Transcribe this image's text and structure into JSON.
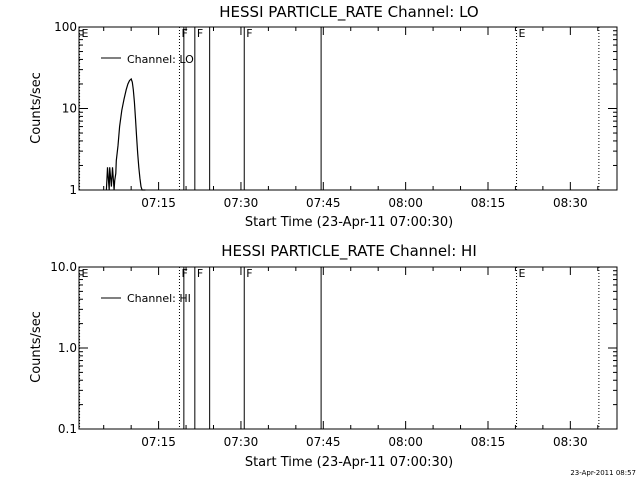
{
  "chart_data": [
    {
      "type": "line",
      "title": "HESSI PARTICLE_RATE Channel: LO",
      "xlabel": "Start Time (23-Apr-11 07:00:30)",
      "ylabel": "Counts/sec",
      "x_unit": "minutes after 07:00",
      "xlim": [
        0.5,
        98.5
      ],
      "ylim": [
        1,
        100
      ],
      "yscale": "log",
      "x_ticks": [
        {
          "label": "07:15",
          "value": 15
        },
        {
          "label": "07:30",
          "value": 30
        },
        {
          "label": "07:45",
          "value": 45
        },
        {
          "label": "08:00",
          "value": 60
        },
        {
          "label": "08:15",
          "value": 75
        },
        {
          "label": "08:30",
          "value": 90
        }
      ],
      "y_ticks": [
        {
          "label": "1",
          "value": 1
        },
        {
          "label": "10",
          "value": 10
        },
        {
          "label": "100",
          "value": 100
        }
      ],
      "legend": {
        "label": "Channel: LO",
        "placement": "top-left"
      },
      "series": [
        {
          "name": "Channel: LO",
          "x": [
            5.5,
            5.7,
            6.0,
            6.1,
            6.4,
            6.6,
            6.9,
            7.0,
            7.2,
            7.3,
            7.6,
            7.9,
            8.3,
            8.7,
            9.1,
            9.4,
            9.7,
            10.0,
            10.2,
            10.4,
            10.6,
            10.8,
            11.0,
            11.2,
            11.4,
            11.6,
            11.8,
            12.0,
            12.2,
            12.4,
            12.6
          ],
          "y": [
            1,
            1.9,
            1,
            1.9,
            1.1,
            1.9,
            1,
            1.3,
            1.6,
            2.3,
            3.5,
            6,
            9.5,
            13,
            17,
            20,
            22,
            23,
            21,
            17,
            12,
            7.5,
            4.5,
            2.8,
            1.9,
            1.4,
            1.1,
            1,
            1,
            1,
            1
          ]
        }
      ],
      "markers": [
        {
          "label": "E",
          "x": 0.6,
          "style": "dotted"
        },
        {
          "label": "F",
          "x": 18.8,
          "style": "dotted"
        },
        {
          "label": "",
          "x": 19.6,
          "style": "solid"
        },
        {
          "label": "F",
          "x": 21.6,
          "style": "solid"
        },
        {
          "label": "",
          "x": 24.3,
          "style": "solid"
        },
        {
          "label": "F",
          "x": 30.6,
          "style": "solid"
        },
        {
          "label": "",
          "x": 44.6,
          "style": "solid"
        },
        {
          "label": "E",
          "x": 80.2,
          "style": "dotted"
        },
        {
          "label": "",
          "x": 95.2,
          "style": "dotted"
        }
      ]
    },
    {
      "type": "line",
      "title": "HESSI PARTICLE_RATE Channel: HI",
      "xlabel": "Start Time (23-Apr-11 07:00:30)",
      "ylabel": "Counts/sec",
      "x_unit": "minutes after 07:00",
      "xlim": [
        0.5,
        98.5
      ],
      "ylim": [
        0.1,
        10
      ],
      "yscale": "log",
      "x_ticks": [
        {
          "label": "07:15",
          "value": 15
        },
        {
          "label": "07:30",
          "value": 30
        },
        {
          "label": "07:45",
          "value": 45
        },
        {
          "label": "08:00",
          "value": 60
        },
        {
          "label": "08:15",
          "value": 75
        },
        {
          "label": "08:30",
          "value": 90
        }
      ],
      "y_ticks": [
        {
          "label": "0.1",
          "value": 0.1
        },
        {
          "label": "1.0",
          "value": 1
        },
        {
          "label": "10.0",
          "value": 10
        }
      ],
      "legend": {
        "label": "Channel: HI",
        "placement": "top-left"
      },
      "series": [
        {
          "name": "Channel: HI",
          "x": [],
          "y": []
        }
      ],
      "markers": [
        {
          "label": "E",
          "x": 0.6,
          "style": "dotted"
        },
        {
          "label": "F",
          "x": 18.8,
          "style": "dotted"
        },
        {
          "label": "",
          "x": 19.6,
          "style": "solid"
        },
        {
          "label": "F",
          "x": 21.6,
          "style": "solid"
        },
        {
          "label": "",
          "x": 24.3,
          "style": "solid"
        },
        {
          "label": "F",
          "x": 30.6,
          "style": "solid"
        },
        {
          "label": "",
          "x": 44.6,
          "style": "solid"
        },
        {
          "label": "E",
          "x": 80.2,
          "style": "dotted"
        },
        {
          "label": "",
          "x": 95.2,
          "style": "dotted"
        }
      ]
    }
  ],
  "timestamp": "23-Apr-2011 08:57"
}
